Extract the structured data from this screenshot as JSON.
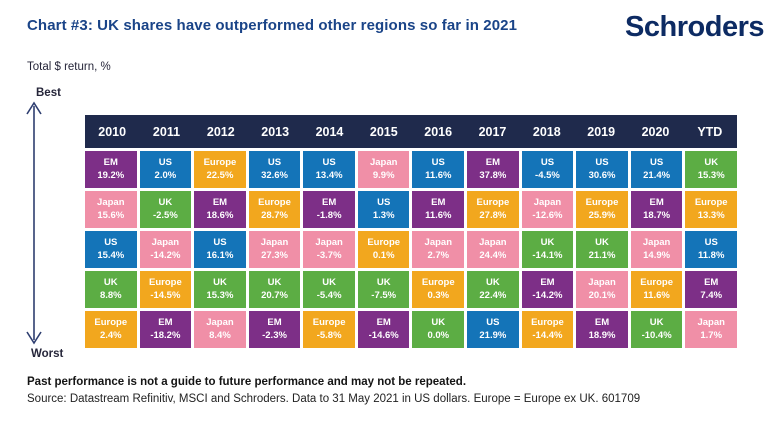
{
  "logo": {
    "text": "Schroders"
  },
  "colors": {
    "title": "#1a4488",
    "logo": "#0d2b63",
    "arrow": "#2e3e70"
  },
  "chart_data": {
    "type": "table",
    "title": "Chart #3: UK shares have outperformed other regions so far in 2021",
    "unit_label": "Total $ return, %",
    "scale_top_label": "Best",
    "scale_bottom_label": "Worst",
    "header_bg": "#1f2a4c",
    "columns": [
      "2010",
      "2011",
      "2012",
      "2013",
      "2014",
      "2015",
      "2016",
      "2017",
      "2018",
      "2019",
      "2020",
      "YTD"
    ],
    "region_colors": {
      "EM": "#7d2f87",
      "US": "#1474b8",
      "Europe": "#f2a71e",
      "UK": "#5cad44",
      "Japan": "#f08fa7"
    },
    "rows": [
      [
        {
          "region": "EM",
          "value": "19.2%"
        },
        {
          "region": "US",
          "value": "2.0%"
        },
        {
          "region": "Europe",
          "value": "22.5%"
        },
        {
          "region": "US",
          "value": "32.6%"
        },
        {
          "region": "US",
          "value": "13.4%"
        },
        {
          "region": "Japan",
          "value": "9.9%"
        },
        {
          "region": "US",
          "value": "11.6%"
        },
        {
          "region": "EM",
          "value": "37.8%"
        },
        {
          "region": "US",
          "value": "-4.5%"
        },
        {
          "region": "US",
          "value": "30.6%"
        },
        {
          "region": "US",
          "value": "21.4%"
        },
        {
          "region": "UK",
          "value": "15.3%"
        }
      ],
      [
        {
          "region": "Japan",
          "value": "15.6%"
        },
        {
          "region": "UK",
          "value": "-2.5%"
        },
        {
          "region": "EM",
          "value": "18.6%"
        },
        {
          "region": "Europe",
          "value": "28.7%"
        },
        {
          "region": "EM",
          "value": "-1.8%"
        },
        {
          "region": "US",
          "value": "1.3%"
        },
        {
          "region": "EM",
          "value": "11.6%"
        },
        {
          "region": "Europe",
          "value": "27.8%"
        },
        {
          "region": "Japan",
          "value": "-12.6%"
        },
        {
          "region": "Europe",
          "value": "25.9%"
        },
        {
          "region": "EM",
          "value": "18.7%"
        },
        {
          "region": "Europe",
          "value": "13.3%"
        }
      ],
      [
        {
          "region": "US",
          "value": "15.4%"
        },
        {
          "region": "Japan",
          "value": "-14.2%"
        },
        {
          "region": "US",
          "value": "16.1%"
        },
        {
          "region": "Japan",
          "value": "27.3%"
        },
        {
          "region": "Japan",
          "value": "-3.7%"
        },
        {
          "region": "Europe",
          "value": "0.1%"
        },
        {
          "region": "Japan",
          "value": "2.7%"
        },
        {
          "region": "Japan",
          "value": "24.4%"
        },
        {
          "region": "UK",
          "value": "-14.1%"
        },
        {
          "region": "UK",
          "value": "21.1%"
        },
        {
          "region": "Japan",
          "value": "14.9%"
        },
        {
          "region": "US",
          "value": "11.8%"
        }
      ],
      [
        {
          "region": "UK",
          "value": "8.8%"
        },
        {
          "region": "Europe",
          "value": "-14.5%"
        },
        {
          "region": "UK",
          "value": "15.3%"
        },
        {
          "region": "UK",
          "value": "20.7%"
        },
        {
          "region": "UK",
          "value": "-5.4%"
        },
        {
          "region": "UK",
          "value": "-7.5%"
        },
        {
          "region": "Europe",
          "value": "0.3%"
        },
        {
          "region": "UK",
          "value": "22.4%"
        },
        {
          "region": "EM",
          "value": "-14.2%"
        },
        {
          "region": "Japan",
          "value": "20.1%"
        },
        {
          "region": "Europe",
          "value": "11.6%"
        },
        {
          "region": "EM",
          "value": "7.4%"
        }
      ],
      [
        {
          "region": "Europe",
          "value": "2.4%"
        },
        {
          "region": "EM",
          "value": "-18.2%"
        },
        {
          "region": "Japan",
          "value": "8.4%"
        },
        {
          "region": "EM",
          "value": "-2.3%"
        },
        {
          "region": "Europe",
          "value": "-5.8%"
        },
        {
          "region": "EM",
          "value": "-14.6%"
        },
        {
          "region": "UK",
          "value": "0.0%"
        },
        {
          "region": "US",
          "value": "21.9%"
        },
        {
          "region": "Europe",
          "value": "-14.4%"
        },
        {
          "region": "EM",
          "value": "18.9%"
        },
        {
          "region": "UK",
          "value": "-10.4%"
        },
        {
          "region": "Japan",
          "value": "1.7%"
        }
      ]
    ]
  },
  "footer": {
    "disclaimer": "Past performance is not a guide to future performance and may not be repeated.",
    "source": "Source: Datastream Refinitiv, MSCI and Schroders. Data to 31 May 2021 in US dollars. Europe = Europe ex UK. 601709"
  }
}
